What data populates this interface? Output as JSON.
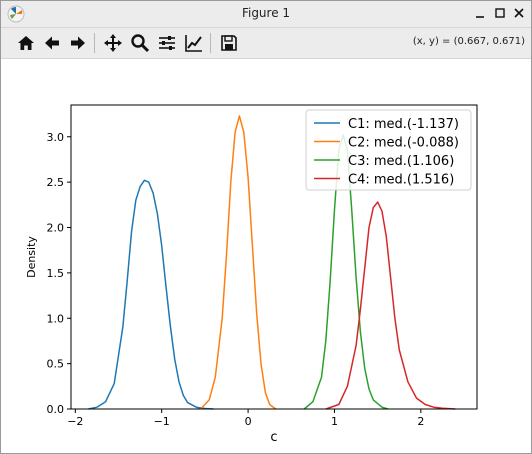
{
  "window": {
    "title": "Figure 1",
    "coords": "(x, y) = (0.667, 0.671)"
  },
  "toolbar": {
    "buttons": [
      {
        "name": "home-button",
        "icon": "home-icon"
      },
      {
        "name": "back-button",
        "icon": "arrow-left-icon"
      },
      {
        "name": "forward-button",
        "icon": "arrow-right-icon"
      },
      {
        "name": "pan-button",
        "icon": "move-icon"
      },
      {
        "name": "zoom-button",
        "icon": "magnifier-icon"
      },
      {
        "name": "configure-subplots-button",
        "icon": "sliders-icon"
      },
      {
        "name": "edit-axes-button",
        "icon": "chart-line-icon"
      },
      {
        "name": "save-button",
        "icon": "floppy-disk-icon"
      }
    ]
  },
  "chart_data": {
    "type": "line",
    "title": "",
    "xlabel": "c",
    "ylabel": "Density",
    "xlim": [
      -2.05,
      2.65
    ],
    "ylim": [
      0,
      3.35
    ],
    "xticks": [
      -2,
      -1,
      0,
      1,
      2
    ],
    "yticks": [
      0.0,
      0.5,
      1.0,
      1.5,
      2.0,
      2.5,
      3.0
    ],
    "grid": false,
    "legend": "top-right",
    "series": [
      {
        "name": "C1: med.(-1.137)",
        "color": "#1f77b4",
        "x": [
          -1.85,
          -1.75,
          -1.65,
          -1.55,
          -1.45,
          -1.4,
          -1.35,
          -1.3,
          -1.25,
          -1.2,
          -1.15,
          -1.1,
          -1.05,
          -1.0,
          -0.95,
          -0.9,
          -0.85,
          -0.8,
          -0.75,
          -0.7,
          -0.6,
          -0.5,
          -0.4
        ],
        "y": [
          0.0,
          0.02,
          0.08,
          0.28,
          0.9,
          1.4,
          1.95,
          2.3,
          2.45,
          2.52,
          2.5,
          2.38,
          2.15,
          1.8,
          1.35,
          0.92,
          0.55,
          0.3,
          0.15,
          0.07,
          0.02,
          0.005,
          0.0
        ]
      },
      {
        "name": "C2: med.(-0.088)",
        "color": "#ff7f0e",
        "x": [
          -0.55,
          -0.45,
          -0.38,
          -0.3,
          -0.25,
          -0.2,
          -0.15,
          -0.1,
          -0.05,
          0.0,
          0.05,
          0.1,
          0.15,
          0.2,
          0.25,
          0.32
        ],
        "y": [
          0.0,
          0.1,
          0.35,
          1.0,
          1.7,
          2.5,
          3.05,
          3.23,
          3.05,
          2.55,
          1.8,
          1.05,
          0.5,
          0.18,
          0.05,
          0.0
        ]
      },
      {
        "name": "C3: med.(1.106)",
        "color": "#2ca02c",
        "x": [
          0.65,
          0.75,
          0.85,
          0.9,
          0.95,
          1.0,
          1.05,
          1.1,
          1.15,
          1.2,
          1.25,
          1.3,
          1.35,
          1.4,
          1.45,
          1.55,
          1.62
        ],
        "y": [
          0.0,
          0.08,
          0.35,
          0.75,
          1.4,
          2.2,
          2.85,
          3.02,
          2.85,
          2.2,
          1.45,
          0.85,
          0.45,
          0.22,
          0.1,
          0.02,
          0.0
        ]
      },
      {
        "name": "C4: med.(1.516)",
        "color": "#d62728",
        "x": [
          0.9,
          1.05,
          1.15,
          1.25,
          1.3,
          1.35,
          1.4,
          1.45,
          1.5,
          1.55,
          1.6,
          1.65,
          1.7,
          1.75,
          1.85,
          1.95,
          2.05,
          2.15,
          2.25,
          2.4
        ],
        "y": [
          0.0,
          0.05,
          0.25,
          0.7,
          1.1,
          1.55,
          2.0,
          2.22,
          2.28,
          2.18,
          1.9,
          1.45,
          1.0,
          0.65,
          0.3,
          0.12,
          0.05,
          0.02,
          0.008,
          0.0
        ]
      }
    ]
  }
}
